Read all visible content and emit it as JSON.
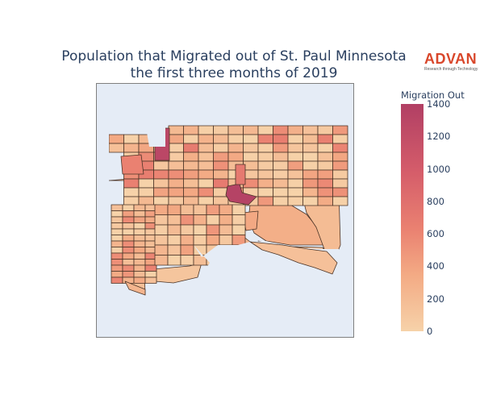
{
  "title": {
    "line1": "Population that Migrated out of St. Paul Minnesota",
    "line2": "the first three months of 2019"
  },
  "logo": {
    "word": "ADVAN",
    "tagline": "Research through Technology",
    "color": "#d9472b"
  },
  "map": {
    "type": "choropleth",
    "region": "St. Paul, Minnesota census block groups",
    "background_color": "#e5ecf6",
    "boundary_color": "#4a3326",
    "hotspots": [
      "north-west block group (~1300)",
      "downtown block group (~1400)"
    ]
  },
  "colorbar": {
    "title": "Migration Out",
    "ticks": [
      "0",
      "200",
      "400",
      "600",
      "800",
      "1000",
      "1200",
      "1400"
    ],
    "range": [
      0,
      1400
    ],
    "colorscale": [
      "#f6d2a9",
      "#f3aa84",
      "#ea8171",
      "#d55d6a",
      "#b13f64"
    ]
  }
}
